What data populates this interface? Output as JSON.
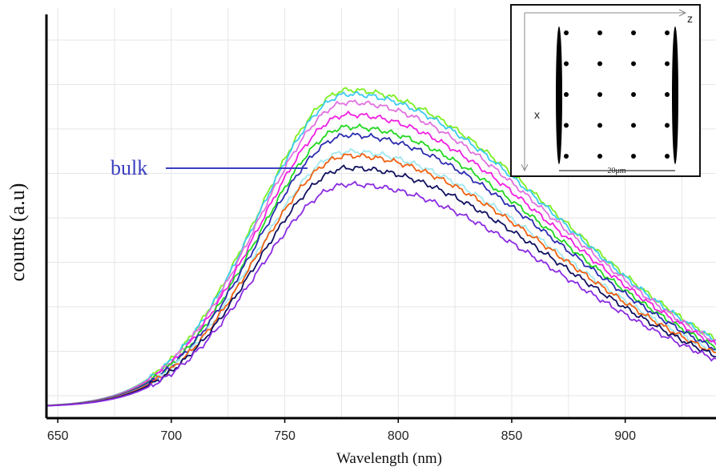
{
  "chart_data": {
    "type": "line",
    "xlabel": "Wavelength (nm)",
    "ylabel": "counts (a.u)",
    "xlim": [
      645,
      940
    ],
    "ylim": [
      0,
      1
    ],
    "xticks": [
      650,
      700,
      750,
      800,
      850,
      900
    ],
    "yticks": [],
    "grid": true,
    "y_tick_labels_shown": false,
    "series": [
      {
        "color": "#7cf020",
        "peak": 0.8
      },
      {
        "color": "#3ccaf0",
        "peak": 0.79
      },
      {
        "color": "#e070e0",
        "peak": 0.77
      },
      {
        "color": "#f020e0",
        "peak": 0.74
      },
      {
        "color": "#20d820",
        "peak": 0.71
      },
      {
        "color": "#2c2cb0",
        "peak": 0.69
      },
      {
        "color": "#a0e8f0",
        "peak": 0.65
      },
      {
        "color": "#f06010",
        "peak": 0.64
      },
      {
        "color": "#101060",
        "peak": 0.61
      },
      {
        "color": "#8a2be2",
        "peak": 0.57
      }
    ],
    "annotation": {
      "text": "bulk",
      "arrow_to_x": 760,
      "color": "#3a3fbf"
    }
  },
  "inset": {
    "x_axis_label": "x",
    "z_axis_label": "z",
    "scale_bar": "20μm",
    "dot_rows": 5,
    "dot_cols": 4
  }
}
